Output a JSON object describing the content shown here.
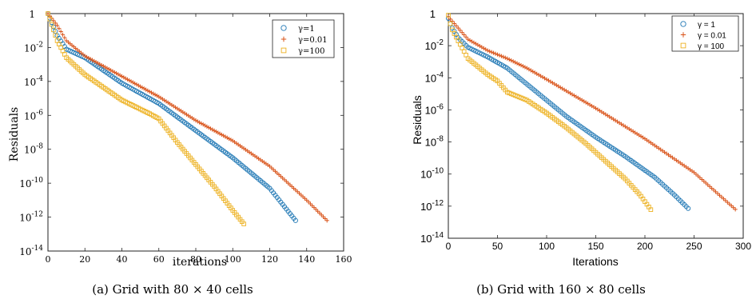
{
  "chart_data": [
    {
      "type": "scatter",
      "caption": "(a) Grid with 80 × 40 cells",
      "xlabel": "iterations",
      "ylabel": "Residuals",
      "xlim": [
        0,
        160
      ],
      "xticks": [
        0,
        20,
        40,
        60,
        80,
        100,
        120,
        140,
        160
      ],
      "ylim_log10": [
        -14,
        0
      ],
      "y_scale": "log",
      "yticks_log10": [
        0,
        -2,
        -4,
        -6,
        -8,
        -10,
        -12,
        -14
      ],
      "ytick_labels": [
        "1",
        "10-2",
        "10-4",
        "10-6",
        "10-8",
        "10-10",
        "10-12",
        "10-14"
      ],
      "legend_position": "top-right",
      "series": [
        {
          "name": "γ=1",
          "marker": "circle",
          "color": "#1f77b4",
          "end_x": 134,
          "points": [
            [
              0,
              0
            ],
            [
              5,
              -1.3
            ],
            [
              10,
              -2.1
            ],
            [
              20,
              -2.6
            ],
            [
              40,
              -4.1
            ],
            [
              60,
              -5.3
            ],
            [
              80,
              -6.9
            ],
            [
              100,
              -8.5
            ],
            [
              120,
              -10.3
            ],
            [
              134,
              -12.2
            ]
          ]
        },
        {
          "name": "γ=0.01",
          "marker": "plus",
          "color": "#d95319",
          "end_x": 151,
          "points": [
            [
              0,
              0
            ],
            [
              5,
              -0.7
            ],
            [
              10,
              -1.6
            ],
            [
              20,
              -2.5
            ],
            [
              40,
              -3.7
            ],
            [
              60,
              -4.9
            ],
            [
              80,
              -6.3
            ],
            [
              100,
              -7.5
            ],
            [
              120,
              -9.0
            ],
            [
              140,
              -11.0
            ],
            [
              151,
              -12.2
            ]
          ]
        },
        {
          "name": "γ=100",
          "marker": "square",
          "color": "#edb120",
          "end_x": 106,
          "points": [
            [
              0,
              0
            ],
            [
              5,
              -1.6
            ],
            [
              10,
              -2.6
            ],
            [
              20,
              -3.6
            ],
            [
              40,
              -5.1
            ],
            [
              55,
              -5.9
            ],
            [
              60,
              -6.2
            ],
            [
              70,
              -7.6
            ],
            [
              80,
              -8.9
            ],
            [
              90,
              -10.2
            ],
            [
              100,
              -11.6
            ],
            [
              106,
              -12.4
            ]
          ]
        }
      ]
    },
    {
      "type": "scatter",
      "caption": "(b) Grid with 160 × 80 cells",
      "xlabel": "Iterations",
      "ylabel": "Residuals",
      "xlim": [
        0,
        300
      ],
      "xticks": [
        0,
        50,
        100,
        150,
        200,
        250,
        300
      ],
      "xtick_labels": [
        "0",
        "50",
        "100",
        "150",
        "200",
        "250",
        "300"
      ],
      "ylim_log10": [
        -14,
        0
      ],
      "y_scale": "log",
      "yticks_log10": [
        0,
        -2,
        -4,
        -6,
        -8,
        -10,
        -12,
        -14
      ],
      "ytick_labels": [
        "1",
        "10-2",
        "10-4",
        "10-6",
        "10-8",
        "10-10",
        "10-12",
        "10-14"
      ],
      "legend_position": "top-right",
      "series": [
        {
          "name": "γ = 1",
          "marker": "circle",
          "color": "#1f77b4",
          "end_x": 245,
          "points": [
            [
              0,
              -0.3
            ],
            [
              3,
              -0.8
            ],
            [
              10,
              -1.5
            ],
            [
              20,
              -2.1
            ],
            [
              40,
              -2.7
            ],
            [
              60,
              -3.4
            ],
            [
              80,
              -4.4
            ],
            [
              100,
              -5.4
            ],
            [
              120,
              -6.4
            ],
            [
              150,
              -7.7
            ],
            [
              180,
              -8.9
            ],
            [
              210,
              -10.2
            ],
            [
              230,
              -11.3
            ],
            [
              245,
              -12.2
            ]
          ]
        },
        {
          "name": "γ = 0.01",
          "marker": "plus",
          "color": "#d95319",
          "end_x": 292,
          "points": [
            [
              0,
              -0.2
            ],
            [
              10,
              -0.9
            ],
            [
              20,
              -1.6
            ],
            [
              40,
              -2.3
            ],
            [
              60,
              -2.8
            ],
            [
              80,
              -3.4
            ],
            [
              100,
              -4.1
            ],
            [
              150,
              -5.9
            ],
            [
              200,
              -7.8
            ],
            [
              250,
              -9.9
            ],
            [
              292,
              -12.2
            ]
          ]
        },
        {
          "name": "γ = 100",
          "marker": "square",
          "color": "#edb120",
          "end_x": 207,
          "points": [
            [
              0,
              -0.1
            ],
            [
              3,
              -0.9
            ],
            [
              10,
              -1.7
            ],
            [
              20,
              -2.8
            ],
            [
              40,
              -3.8
            ],
            [
              50,
              -4.2
            ],
            [
              60,
              -4.9
            ],
            [
              80,
              -5.4
            ],
            [
              100,
              -6.2
            ],
            [
              120,
              -7.1
            ],
            [
              140,
              -8.1
            ],
            [
              160,
              -9.2
            ],
            [
              180,
              -10.3
            ],
            [
              195,
              -11.3
            ],
            [
              207,
              -12.3
            ]
          ]
        }
      ]
    }
  ]
}
